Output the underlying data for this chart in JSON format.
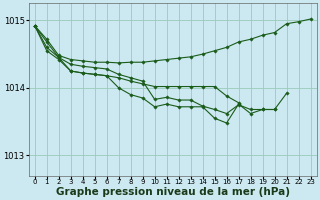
{
  "background_color": "#cce8f0",
  "grid_color": "#99ccbb",
  "line_color": "#1a5c1a",
  "marker_color": "#1a5c1a",
  "xlabel": "Graphe pression niveau de la mer (hPa)",
  "xlabel_fontsize": 7.5,
  "ylim": [
    1012.7,
    1015.25
  ],
  "xlim": [
    -0.5,
    23.5
  ],
  "yticks": [
    1013,
    1014,
    1015
  ],
  "xticks": [
    0,
    1,
    2,
    3,
    4,
    5,
    6,
    7,
    8,
    9,
    10,
    11,
    12,
    13,
    14,
    15,
    16,
    17,
    18,
    19,
    20,
    21,
    22,
    23
  ],
  "series": [
    [
      1014.92,
      1014.72,
      1014.48,
      1014.42,
      1014.4,
      1014.38,
      1014.38,
      1014.37,
      1014.38,
      1014.38,
      1014.4,
      1014.42,
      1014.44,
      1014.46,
      1014.5,
      1014.55,
      1014.6,
      1014.68,
      1014.72,
      1014.78,
      1014.82,
      1014.95,
      1014.98,
      1015.02
    ],
    [
      1014.92,
      1014.68,
      1014.45,
      1014.35,
      1014.32,
      1014.3,
      1014.28,
      1014.2,
      1014.15,
      1014.1,
      1013.83,
      1013.86,
      1013.82,
      1013.82,
      1013.73,
      1013.68,
      1013.62,
      1013.75,
      1013.68,
      1013.68,
      1013.68,
      1013.92,
      null,
      null
    ],
    [
      1014.92,
      1014.6,
      1014.45,
      1014.25,
      1014.22,
      1014.2,
      1014.18,
      1014.0,
      1013.9,
      1013.85,
      1013.72,
      1013.76,
      1013.72,
      1013.72,
      1013.72,
      1013.55,
      1013.48,
      1013.76,
      1013.62,
      1013.68,
      1013.68,
      null,
      null,
      null
    ],
    [
      1014.92,
      1014.55,
      1014.42,
      1014.25,
      1014.22,
      1014.2,
      1014.18,
      1014.15,
      1014.1,
      1014.06,
      1014.02,
      1014.02,
      1014.02,
      1014.02,
      1014.02,
      1014.02,
      1013.88,
      1013.78,
      null,
      null,
      null,
      null,
      null,
      null
    ]
  ]
}
